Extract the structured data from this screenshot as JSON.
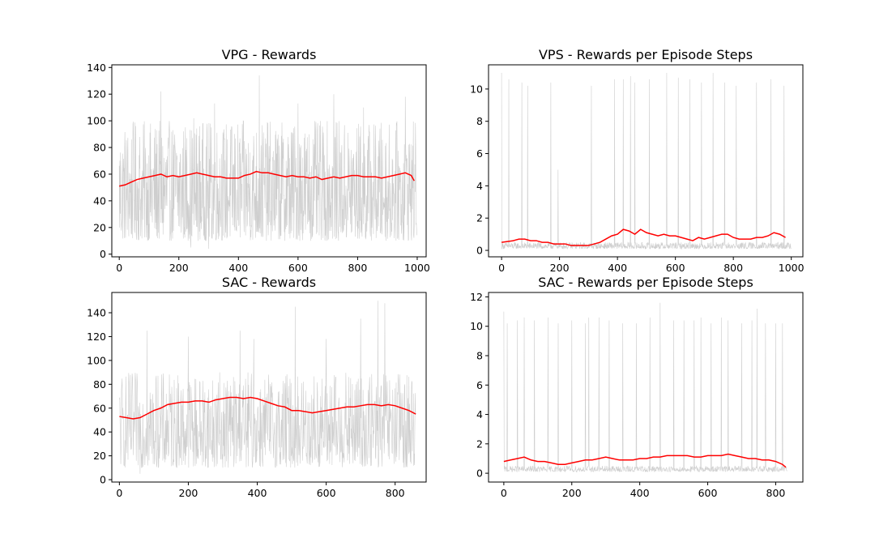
{
  "colors": {
    "raw": "#bdbdbd",
    "smooth": "#ff0000"
  },
  "chart_data": [
    {
      "type": "line",
      "title": "VPG - Rewards",
      "xlim": [
        -25,
        1030
      ],
      "ylim": [
        -2,
        142
      ],
      "xticks": [
        0,
        200,
        400,
        600,
        800,
        1000
      ],
      "yticks": [
        0,
        20,
        40,
        60,
        80,
        100,
        120,
        140
      ],
      "raw": {
        "n": 1000,
        "low": 10,
        "high": 100,
        "spikes": [
          [
            470,
            134
          ],
          [
            320,
            113
          ],
          [
            140,
            122
          ],
          [
            720,
            120
          ],
          [
            820,
            110
          ],
          [
            960,
            118
          ],
          [
            250,
            102
          ],
          [
            600,
            113
          ]
        ],
        "dips": [
          [
            300,
            4
          ],
          [
            240,
            5
          ]
        ]
      },
      "smoothed": {
        "x": [
          0,
          20,
          40,
          60,
          80,
          100,
          120,
          140,
          160,
          180,
          200,
          220,
          240,
          260,
          280,
          300,
          320,
          340,
          360,
          380,
          400,
          420,
          440,
          460,
          480,
          500,
          520,
          540,
          560,
          580,
          600,
          620,
          640,
          660,
          680,
          700,
          720,
          740,
          760,
          780,
          800,
          820,
          840,
          860,
          880,
          900,
          920,
          940,
          960,
          980,
          990
        ],
        "y": [
          51,
          52,
          54,
          56,
          57,
          58,
          59,
          60,
          58,
          59,
          58,
          59,
          60,
          61,
          60,
          59,
          58,
          58,
          57,
          57,
          57,
          59,
          60,
          62,
          61,
          61,
          60,
          59,
          58,
          59,
          58,
          58,
          57,
          58,
          56,
          57,
          58,
          57,
          58,
          59,
          59,
          58,
          58,
          58,
          57,
          58,
          59,
          60,
          61,
          59,
          55
        ]
      }
    },
    {
      "type": "line",
      "title": "VPS - Rewards per Episode Steps",
      "xlim": [
        -45,
        1040
      ],
      "ylim": [
        -0.4,
        11.5
      ],
      "xticks": [
        0,
        200,
        400,
        600,
        800,
        1000
      ],
      "yticks": [
        0,
        2,
        4,
        6,
        8,
        10
      ],
      "raw": {
        "n": 1000,
        "low": 0.1,
        "high": 0.5,
        "spikes": [
          [
            0,
            11
          ],
          [
            25,
            10.6
          ],
          [
            70,
            10.4
          ],
          [
            90,
            10.2
          ],
          [
            170,
            10.4
          ],
          [
            195,
            5
          ],
          [
            310,
            10.2
          ],
          [
            390,
            10.6
          ],
          [
            420,
            10.6
          ],
          [
            445,
            10.8
          ],
          [
            460,
            10.4
          ],
          [
            510,
            10.6
          ],
          [
            570,
            11
          ],
          [
            610,
            10.7
          ],
          [
            650,
            10.6
          ],
          [
            690,
            10.4
          ],
          [
            730,
            11
          ],
          [
            770,
            10.4
          ],
          [
            810,
            10.2
          ],
          [
            880,
            10.4
          ],
          [
            930,
            10.6
          ],
          [
            975,
            10.2
          ]
        ],
        "dips": []
      },
      "smoothed": {
        "x": [
          0,
          40,
          60,
          80,
          100,
          120,
          140,
          160,
          180,
          200,
          220,
          240,
          260,
          280,
          300,
          320,
          340,
          360,
          380,
          400,
          420,
          440,
          460,
          480,
          500,
          520,
          540,
          560,
          580,
          600,
          620,
          640,
          660,
          680,
          700,
          720,
          740,
          760,
          780,
          800,
          820,
          840,
          860,
          880,
          900,
          920,
          940,
          960,
          980
        ],
        "y": [
          0.5,
          0.6,
          0.7,
          0.7,
          0.6,
          0.6,
          0.5,
          0.5,
          0.4,
          0.4,
          0.4,
          0.3,
          0.3,
          0.3,
          0.3,
          0.4,
          0.5,
          0.7,
          0.9,
          1.0,
          1.3,
          1.2,
          1.0,
          1.3,
          1.1,
          1.0,
          0.9,
          1.0,
          0.9,
          0.9,
          0.8,
          0.7,
          0.6,
          0.8,
          0.7,
          0.8,
          0.9,
          1.0,
          1.0,
          0.8,
          0.7,
          0.7,
          0.7,
          0.8,
          0.8,
          0.9,
          1.1,
          1.0,
          0.8
        ]
      }
    },
    {
      "type": "line",
      "title": "SAC - Rewards",
      "xlim": [
        -22,
        890
      ],
      "ylim": [
        -2,
        157
      ],
      "xticks": [
        0,
        200,
        400,
        600,
        800
      ],
      "yticks": [
        0,
        20,
        40,
        60,
        80,
        100,
        120,
        140
      ],
      "raw": {
        "n": 860,
        "low": 10,
        "high": 90,
        "spikes": [
          [
            750,
            150
          ],
          [
            770,
            148
          ],
          [
            350,
            125
          ],
          [
            510,
            145
          ],
          [
            700,
            135
          ],
          [
            200,
            120
          ],
          [
            80,
            125
          ],
          [
            390,
            118
          ],
          [
            600,
            118
          ]
        ],
        "dips": [
          [
            60,
            5
          ]
        ]
      },
      "smoothed": {
        "x": [
          0,
          20,
          40,
          60,
          80,
          100,
          120,
          140,
          160,
          180,
          200,
          220,
          240,
          260,
          280,
          300,
          320,
          340,
          360,
          380,
          400,
          420,
          440,
          460,
          480,
          500,
          520,
          540,
          560,
          580,
          600,
          620,
          640,
          660,
          680,
          700,
          720,
          740,
          760,
          780,
          800,
          820,
          840,
          860
        ],
        "y": [
          53,
          52,
          51,
          52,
          55,
          58,
          60,
          63,
          64,
          65,
          65,
          66,
          66,
          65,
          67,
          68,
          69,
          69,
          68,
          69,
          68,
          66,
          64,
          62,
          61,
          58,
          58,
          57,
          56,
          57,
          58,
          59,
          60,
          61,
          61,
          62,
          63,
          63,
          62,
          63,
          62,
          60,
          58,
          55
        ]
      }
    },
    {
      "type": "line",
      "title": "SAC - Rewards per Episode Steps",
      "xlim": [
        -45,
        880
      ],
      "ylim": [
        -0.6,
        12.3
      ],
      "xticks": [
        0,
        200,
        400,
        600,
        800
      ],
      "yticks": [
        0,
        2,
        4,
        6,
        8,
        10,
        12
      ],
      "raw": {
        "n": 835,
        "low": 0.1,
        "high": 0.5,
        "spikes": [
          [
            0,
            11
          ],
          [
            10,
            10.2
          ],
          [
            40,
            10.4
          ],
          [
            60,
            10.6
          ],
          [
            90,
            10.4
          ],
          [
            130,
            10.6
          ],
          [
            160,
            10.2
          ],
          [
            200,
            10.4
          ],
          [
            240,
            10.2
          ],
          [
            250,
            10.6
          ],
          [
            280,
            10.6
          ],
          [
            310,
            10.4
          ],
          [
            350,
            10.2
          ],
          [
            390,
            10.2
          ],
          [
            430,
            10.6
          ],
          [
            460,
            11.6
          ],
          [
            500,
            10.4
          ],
          [
            530,
            10.4
          ],
          [
            560,
            10.4
          ],
          [
            580,
            10.6
          ],
          [
            610,
            10.2
          ],
          [
            640,
            10.6
          ],
          [
            660,
            10.4
          ],
          [
            700,
            10.2
          ],
          [
            730,
            10.4
          ],
          [
            745,
            11.2
          ],
          [
            770,
            10.2
          ],
          [
            800,
            10.2
          ],
          [
            820,
            10.2
          ]
        ],
        "dips": []
      },
      "smoothed": {
        "x": [
          0,
          20,
          40,
          60,
          80,
          100,
          120,
          140,
          160,
          180,
          200,
          220,
          240,
          260,
          280,
          300,
          320,
          340,
          360,
          380,
          400,
          420,
          440,
          460,
          480,
          500,
          520,
          540,
          560,
          580,
          600,
          620,
          640,
          660,
          680,
          700,
          720,
          740,
          760,
          780,
          800,
          820,
          830
        ],
        "y": [
          0.8,
          0.9,
          1.0,
          1.1,
          0.9,
          0.8,
          0.8,
          0.7,
          0.6,
          0.6,
          0.7,
          0.8,
          0.9,
          0.9,
          1.0,
          1.1,
          1.0,
          0.9,
          0.9,
          0.9,
          1.0,
          1.0,
          1.1,
          1.1,
          1.2,
          1.2,
          1.2,
          1.2,
          1.1,
          1.1,
          1.2,
          1.2,
          1.2,
          1.3,
          1.2,
          1.1,
          1.0,
          1.0,
          0.9,
          0.9,
          0.8,
          0.6,
          0.4
        ]
      }
    }
  ]
}
